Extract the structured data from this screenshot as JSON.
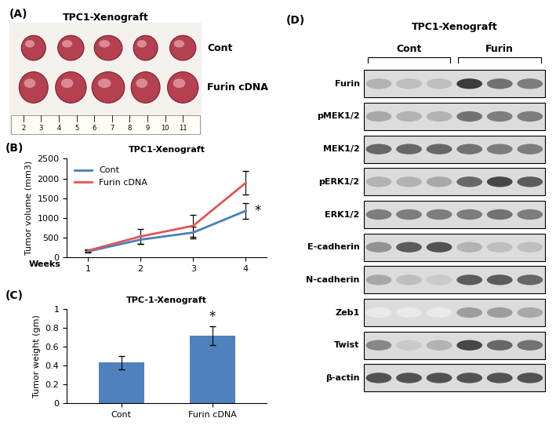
{
  "photo": {
    "panel": "(A)",
    "title": "TPC1-Xenograft",
    "rows": [
      {
        "label": "Cont",
        "count": 5
      },
      {
        "label": "Furin cDNA",
        "count": 5
      }
    ],
    "ruler_ticks": [
      2,
      3,
      4,
      5,
      6,
      7,
      8,
      9,
      10,
      11
    ]
  },
  "chart_data": [
    {
      "type": "line",
      "panel": "(B)",
      "title": "TPC1-Xenograft",
      "x": [
        1,
        2,
        3,
        4
      ],
      "xlabel": "Weeks",
      "ylabel": "Tumor volume (mm3)",
      "xlim": [
        0.6,
        4.4
      ],
      "xticks": [
        1,
        2,
        3,
        4
      ],
      "ylim": [
        0,
        2500
      ],
      "yticks": [
        0,
        500,
        1000,
        1500,
        2000,
        2500
      ],
      "legend": "upper left",
      "annotation": "*",
      "series": [
        {
          "name": "Cont",
          "color": "#4a7ebb",
          "values": [
            150,
            450,
            630,
            1180
          ],
          "errors": [
            30,
            100,
            150,
            200
          ]
        },
        {
          "name": "Furin cDNA",
          "color": "#e05555",
          "values": [
            170,
            530,
            800,
            1890
          ],
          "errors": [
            30,
            180,
            280,
            300
          ]
        }
      ]
    },
    {
      "type": "bar",
      "panel": "(C)",
      "title": "TPC-1-Xenograft",
      "categories": [
        "Cont",
        "Furin cDNA"
      ],
      "values": [
        0.43,
        0.72
      ],
      "errors": [
        0.07,
        0.1
      ],
      "ylabel": "Tumor weight (gm)",
      "color": "#4f81bd",
      "ylim": [
        0,
        1
      ],
      "yticks": [
        0,
        0.2,
        0.4,
        0.6,
        0.8,
        1
      ],
      "annotation": "*"
    }
  ],
  "blot": {
    "panel": "(D)",
    "title": "TPC1-Xenograft",
    "groups": [
      {
        "label": "Cont",
        "lanes": 3
      },
      {
        "label": "Furin",
        "lanes": 3
      }
    ],
    "rows": [
      {
        "label": "Furin",
        "bands": [
          0.35,
          0.3,
          0.3,
          0.9,
          0.65,
          0.6
        ]
      },
      {
        "label": "pMEK1/2",
        "bands": [
          0.4,
          0.35,
          0.35,
          0.65,
          0.6,
          0.6
        ]
      },
      {
        "label": "MEK1/2",
        "bands": [
          0.7,
          0.7,
          0.7,
          0.65,
          0.6,
          0.6
        ]
      },
      {
        "label": "pERK1/2",
        "bands": [
          0.35,
          0.35,
          0.4,
          0.7,
          0.85,
          0.75
        ]
      },
      {
        "label": "ERK1/2",
        "bands": [
          0.6,
          0.6,
          0.6,
          0.6,
          0.65,
          0.6
        ]
      },
      {
        "label": "E-cadherin",
        "bands": [
          0.5,
          0.75,
          0.8,
          0.35,
          0.3,
          0.3
        ]
      },
      {
        "label": "N-cadherin",
        "bands": [
          0.4,
          0.3,
          0.25,
          0.75,
          0.75,
          0.7
        ]
      },
      {
        "label": "Zeb1",
        "bands": [
          0.1,
          0.1,
          0.1,
          0.45,
          0.45,
          0.4
        ]
      },
      {
        "label": "Twist",
        "bands": [
          0.55,
          0.25,
          0.35,
          0.85,
          0.7,
          0.65
        ]
      },
      {
        "label": "β-actin",
        "bands": [
          0.8,
          0.8,
          0.8,
          0.8,
          0.8,
          0.8
        ]
      }
    ]
  }
}
